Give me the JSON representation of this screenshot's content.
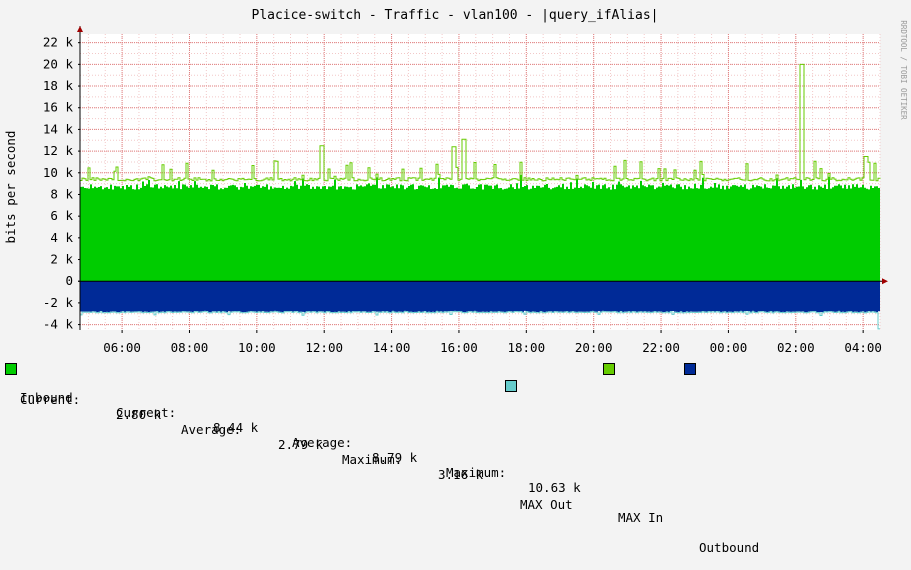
{
  "chart_data": {
    "type": "area",
    "title": "Placice-switch - Traffic - vlan100 - |query_ifAlias|",
    "ylabel": "bits per second",
    "watermark": "RRDTOOL / TOBI OETIKER",
    "ylim": [
      -4500,
      22800
    ],
    "y_ticks": [
      -4000,
      -2000,
      0,
      2000,
      4000,
      6000,
      8000,
      10000,
      12000,
      14000,
      16000,
      18000,
      20000,
      22000
    ],
    "y_tick_labels": [
      "-4 k",
      "-2 k",
      "0",
      "2 k",
      "4 k",
      "6 k",
      "8 k",
      "10 k",
      "12 k",
      "14 k",
      "16 k",
      "18 k",
      "20 k",
      "22 k"
    ],
    "x_range_hours": [
      4.75,
      28.5
    ],
    "x_ticks": [
      6,
      8,
      10,
      12,
      14,
      16,
      18,
      20,
      22,
      24,
      26,
      28
    ],
    "x_tick_labels": [
      "06:00",
      "08:00",
      "10:00",
      "12:00",
      "14:00",
      "16:00",
      "18:00",
      "20:00",
      "22:00",
      "00:00",
      "02:00",
      "04:00"
    ],
    "grid": true,
    "series": [
      {
        "name": "Inbound",
        "color": "#00cc00",
        "current": 8440,
        "average": 8790,
        "maximum": 10630,
        "baseline": 8700
      },
      {
        "name": "MAX In",
        "color": "#66cc00",
        "baseline": 9400,
        "spikes": [
          {
            "x": 26.1,
            "y": 20000
          },
          {
            "x": 16.1,
            "y": 13100
          },
          {
            "x": 11.9,
            "y": 12500
          },
          {
            "x": 15.8,
            "y": 12400
          },
          {
            "x": 28.0,
            "y": 11500
          }
        ]
      },
      {
        "name": "Outbound",
        "color": "#002a97",
        "current": 2800,
        "average": 2790,
        "maximum": 3160
      },
      {
        "name": "MAX Out",
        "color": "#66cccc"
      }
    ]
  },
  "legend": {
    "row1": {
      "inbound_label": "Inbound",
      "current_label": "Current:",
      "current_value": "8.44 k",
      "average_label": "Average:",
      "average_value": "8.79 k",
      "maximum_label": "Maximum:",
      "maximum_value": "10.63 k",
      "max_in_label": "MAX In",
      "outbound_label": "Outbound"
    },
    "row2": {
      "current_label": "Current:",
      "current_value": "2.80 k",
      "average_label": "Average:",
      "average_value": "2.79 k",
      "maximum_label": "Maximum:",
      "maximum_value": "3.16 k",
      "max_out_label": "MAX Out"
    }
  }
}
